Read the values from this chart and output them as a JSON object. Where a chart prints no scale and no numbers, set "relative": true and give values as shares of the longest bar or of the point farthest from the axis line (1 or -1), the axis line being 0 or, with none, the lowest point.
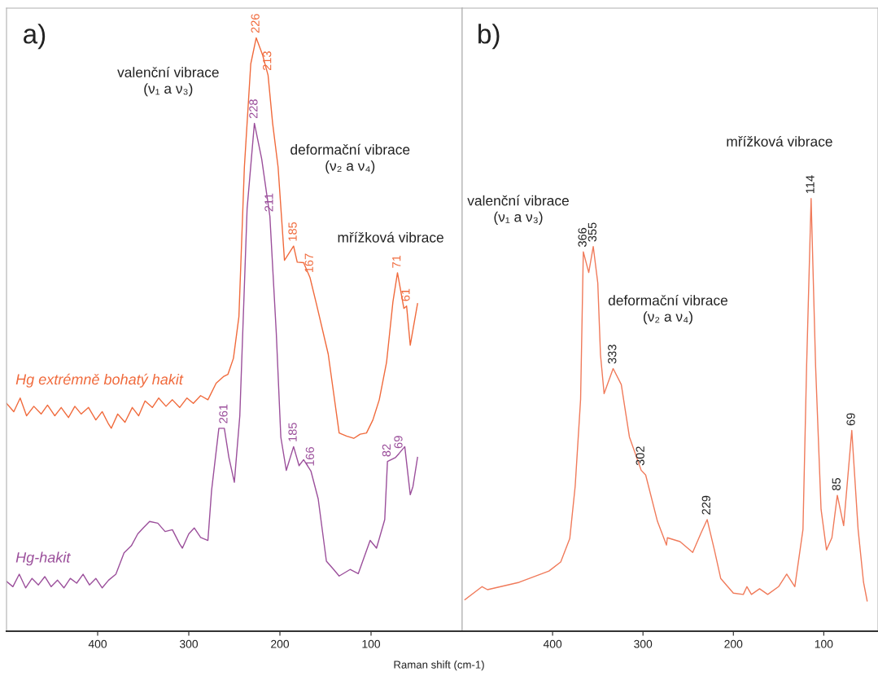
{
  "chart_data": [
    {
      "type": "line",
      "title": "a)",
      "xlabel": "Raman shift (cm-1)",
      "relative": true,
      "xlim": [
        500,
        0
      ],
      "xticks": [
        400,
        300,
        200,
        100
      ],
      "series": [
        {
          "name": "Hg extrémně bohatý hakit",
          "color": "#f06a3c",
          "x": [
            500,
            492,
            485,
            478,
            470,
            462,
            455,
            447,
            440,
            432,
            425,
            418,
            410,
            402,
            395,
            388,
            385,
            378,
            370,
            362,
            355,
            348,
            340,
            333,
            325,
            318,
            310,
            302,
            295,
            287,
            279,
            270,
            262,
            257,
            251,
            245,
            239,
            232,
            226,
            219,
            213,
            208,
            202,
            195,
            190,
            185,
            181,
            174,
            167,
            160,
            147,
            135,
            127,
            119,
            112,
            105,
            98,
            91,
            83,
            76,
            71,
            64,
            61,
            57,
            49
          ],
          "values": [
            0.384,
            0.37,
            0.393,
            0.363,
            0.379,
            0.366,
            0.381,
            0.363,
            0.377,
            0.36,
            0.379,
            0.366,
            0.377,
            0.356,
            0.37,
            0.349,
            0.342,
            0.366,
            0.352,
            0.377,
            0.363,
            0.388,
            0.377,
            0.393,
            0.379,
            0.39,
            0.377,
            0.393,
            0.384,
            0.397,
            0.39,
            0.418,
            0.429,
            0.433,
            0.46,
            0.53,
            0.782,
            0.956,
            1.0,
            0.971,
            0.937,
            0.856,
            0.782,
            0.625,
            0.637,
            0.649,
            0.622,
            0.621,
            0.596,
            0.552,
            0.467,
            0.334,
            0.329,
            0.325,
            0.332,
            0.334,
            0.356,
            0.39,
            0.453,
            0.555,
            0.604,
            0.544,
            0.548,
            0.482,
            0.552
          ]
        },
        {
          "name": "Hg-hakit",
          "color": "#9b4f9b",
          "x": [
            500,
            493,
            486,
            479,
            472,
            465,
            458,
            451,
            444,
            437,
            430,
            423,
            416,
            409,
            402,
            395,
            388,
            380,
            371,
            363,
            356,
            350,
            343,
            334,
            326,
            318,
            310,
            307,
            300,
            294,
            287,
            279,
            275,
            267,
            261,
            256,
            250,
            244,
            236,
            228,
            220,
            211,
            204,
            199,
            193,
            185,
            179,
            174,
            166,
            158,
            149,
            141,
            135,
            123,
            114,
            101,
            94,
            85,
            82,
            73,
            69,
            63,
            57,
            54,
            49
          ],
          "values": [
            0.084,
            0.075,
            0.096,
            0.073,
            0.089,
            0.078,
            0.092,
            0.075,
            0.086,
            0.073,
            0.089,
            0.081,
            0.096,
            0.078,
            0.089,
            0.073,
            0.086,
            0.096,
            0.132,
            0.144,
            0.164,
            0.174,
            0.185,
            0.182,
            0.168,
            0.171,
            0.147,
            0.14,
            0.164,
            0.174,
            0.158,
            0.153,
            0.237,
            0.342,
            0.342,
            0.293,
            0.251,
            0.363,
            0.712,
            0.856,
            0.796,
            0.699,
            0.503,
            0.327,
            0.271,
            0.311,
            0.279,
            0.289,
            0.27,
            0.223,
            0.118,
            0.104,
            0.093,
            0.104,
            0.097,
            0.153,
            0.14,
            0.188,
            0.286,
            0.293,
            0.3,
            0.311,
            0.23,
            0.244,
            0.293
          ]
        }
      ],
      "annotations": [
        "valenční vibrace\n(ν₁ a ν₃)",
        "deformační vibrace\n(ν₂ a ν₄)",
        "mřížková vibrace",
        {
          "text": "226",
          "x": 226,
          "y": 1.0
        },
        {
          "text": "213",
          "x": 213,
          "y": 0.937
        },
        {
          "text": "185",
          "x": 185,
          "y": 0.649
        },
        {
          "text": "167",
          "x": 167,
          "y": 0.596
        },
        {
          "text": "71",
          "x": 71,
          "y": 0.604
        },
        {
          "text": "61",
          "x": 61,
          "y": 0.548
        },
        {
          "text": "261",
          "x": 261,
          "y": 0.342
        },
        {
          "text": "228",
          "x": 228,
          "y": 0.856
        },
        {
          "text": "211",
          "x": 211,
          "y": 0.699
        },
        {
          "text": "185",
          "x": 185,
          "y": 0.311
        },
        {
          "text": "166",
          "x": 166,
          "y": 0.27
        },
        {
          "text": "82",
          "x": 82,
          "y": 0.286
        },
        {
          "text": "69",
          "x": 69,
          "y": 0.3
        }
      ]
    },
    {
      "type": "line",
      "title": "b)",
      "relative": true,
      "xlim": [
        500,
        40
      ],
      "xticks": [
        400,
        300,
        200,
        100
      ],
      "series": [
        {
          "color": "#f07a5a",
          "x": [
            497,
            478,
            472,
            437,
            404,
            391,
            381,
            375,
            369,
            366,
            360,
            355,
            350,
            347,
            343,
            333,
            324,
            315,
            302,
            297,
            284,
            274,
            273,
            259,
            245,
            236,
            229,
            221,
            214,
            200,
            189,
            185,
            180,
            171,
            162,
            150,
            141,
            132,
            123,
            119,
            114,
            109,
            103,
            97,
            91,
            85,
            78,
            69,
            62,
            56,
            52
          ],
          "values": [
            0.073,
            0.103,
            0.096,
            0.113,
            0.139,
            0.16,
            0.214,
            0.335,
            0.536,
            0.877,
            0.829,
            0.889,
            0.805,
            0.639,
            0.549,
            0.607,
            0.57,
            0.449,
            0.372,
            0.361,
            0.254,
            0.199,
            0.216,
            0.207,
            0.182,
            0.226,
            0.258,
            0.188,
            0.122,
            0.088,
            0.085,
            0.103,
            0.085,
            0.098,
            0.085,
            0.103,
            0.132,
            0.103,
            0.235,
            0.611,
            1.0,
            0.611,
            0.282,
            0.188,
            0.216,
            0.314,
            0.244,
            0.464,
            0.235,
            0.113,
            0.07
          ]
        }
      ],
      "annotations": [
        "valenční vibrace\n(ν₁ a ν₃)",
        "deformační vibrace\n(ν₂ a ν₄)",
        "mřížková vibrace",
        {
          "text": "366",
          "x": 366,
          "y": 0.877
        },
        {
          "text": "355",
          "x": 355,
          "y": 0.889
        },
        {
          "text": "333",
          "x": 333,
          "y": 0.607
        },
        {
          "text": "302",
          "x": 302,
          "y": 0.372
        },
        {
          "text": "229",
          "x": 229,
          "y": 0.258
        },
        {
          "text": "114",
          "x": 114,
          "y": 1.0
        },
        {
          "text": "85",
          "x": 85,
          "y": 0.314
        },
        {
          "text": "69",
          "x": 69,
          "y": 0.464
        }
      ]
    }
  ]
}
